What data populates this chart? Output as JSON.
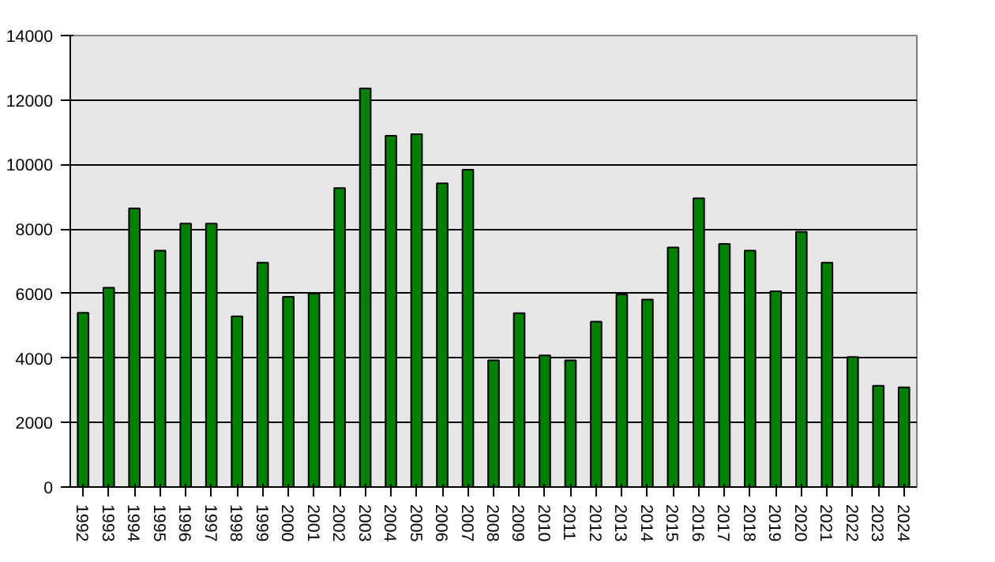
{
  "chart_data": {
    "type": "bar",
    "categories": [
      "1992",
      "1993",
      "1994",
      "1995",
      "1996",
      "1997",
      "1998",
      "1999",
      "2000",
      "2001",
      "2002",
      "2003",
      "2004",
      "2005",
      "2006",
      "2007",
      "2008",
      "2009",
      "2010",
      "2011",
      "2012",
      "2013",
      "2014",
      "2015",
      "2016",
      "2017",
      "2018",
      "2019",
      "2020",
      "2021",
      "2022",
      "2023",
      "2024"
    ],
    "values": [
      5400,
      6180,
      8640,
      7330,
      8170,
      8170,
      5290,
      6960,
      5900,
      6000,
      9270,
      12360,
      10890,
      10940,
      9420,
      9840,
      3930,
      5390,
      4080,
      3930,
      5130,
      5970,
      5810,
      7430,
      8950,
      7540,
      7330,
      6070,
      7910,
      6960,
      4030,
      3140,
      3090
    ],
    "color": "#008000",
    "ylim": [
      0,
      14000
    ],
    "yticks": [
      0,
      2000,
      4000,
      6000,
      8000,
      10000,
      12000,
      14000
    ],
    "grid": "y"
  }
}
